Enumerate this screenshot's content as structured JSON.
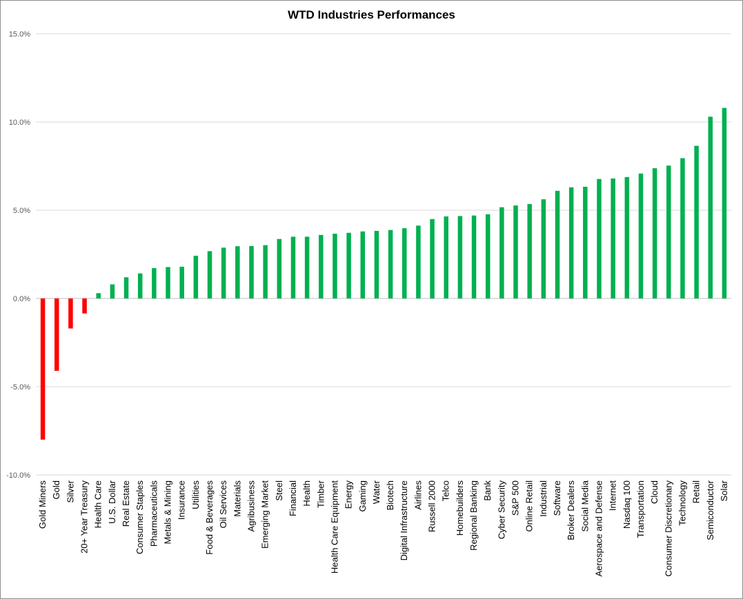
{
  "chart_data": {
    "type": "bar",
    "title": "WTD Industries Performances",
    "xlabel": "",
    "ylabel": "",
    "ylim": [
      -10,
      15
    ],
    "yticks": [
      -10,
      -5,
      0,
      5,
      10,
      15
    ],
    "ytick_labels": [
      "-10.0%",
      "-5.0%",
      "0.0%",
      "5.0%",
      "10.0%",
      "15.0%"
    ],
    "grid": true,
    "legend": "none",
    "colors": {
      "positive": "#00b050",
      "negative": "#ff0000",
      "grid": "#d9d9d9",
      "axis": "#bfbfbf"
    },
    "categories": [
      "Gold Miners",
      "Gold",
      "Silver",
      "20+ Year Treasury",
      "Health Care",
      "U.S. Dollar",
      "Real Estate",
      "Consumer Staples",
      "Pharmaceuticals",
      "Metals & Mining",
      "Insurance",
      "Utilities",
      "Food & Beverages",
      "Oil Services",
      "Materials",
      "Agribusiness",
      "Emerging Market",
      "Steel",
      "Financial",
      "Health",
      "Timber",
      "Health Care Equipment",
      "Energy",
      "Gaming",
      "Water",
      "Biotech",
      "Digital Infrastructure",
      "Airlines",
      "Russell 2000",
      "Telco",
      "Homebuilders",
      "Regional Banking",
      "Bank",
      "Cyber Security",
      "S&P 500",
      "Online Retail",
      "Industrial",
      "Software",
      "Broker Dealers",
      "Social Media",
      "Aerospace and Defense",
      "Internet",
      "Nasdaq 100",
      "Transportation",
      "Cloud",
      "Consumer Discretionary",
      "Technology",
      "Retail",
      "Semiconductor",
      "Solar"
    ],
    "values": [
      -8.0,
      -4.1,
      -1.7,
      -0.85,
      0.3,
      0.8,
      1.2,
      1.42,
      1.72,
      1.78,
      1.8,
      2.42,
      2.68,
      2.88,
      2.96,
      2.97,
      3.02,
      3.37,
      3.5,
      3.5,
      3.6,
      3.67,
      3.72,
      3.8,
      3.83,
      3.88,
      3.98,
      4.13,
      4.5,
      4.65,
      4.67,
      4.7,
      4.77,
      5.17,
      5.27,
      5.35,
      5.62,
      6.1,
      6.3,
      6.33,
      6.77,
      6.8,
      6.88,
      7.08,
      7.38,
      7.53,
      7.95,
      8.65,
      10.3,
      10.8
    ]
  }
}
